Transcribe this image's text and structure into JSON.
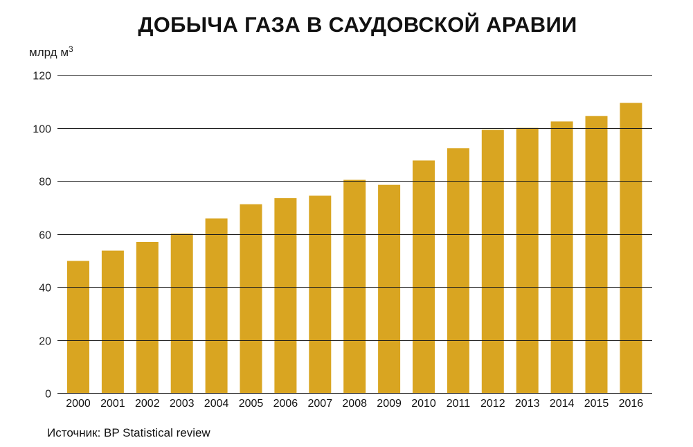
{
  "title": "ДОБЫЧА ГАЗА В САУДОВСКОЙ АРАВИИ",
  "unit": {
    "text": "млрд м",
    "superscript": "3"
  },
  "source": "Источник: BP Statistical review",
  "colors": {
    "bar": "#d9a521",
    "grid": "#1a1a1a",
    "baseline_marker": "#7a1f0c"
  },
  "chart_data": {
    "type": "bar",
    "title": "ДОБЫЧА ГАЗА В САУДОВСКОЙ АРАВИИ",
    "xlabel": "",
    "ylabel": "млрд м³",
    "ylim": [
      0,
      120
    ],
    "yticks": [
      0,
      20,
      40,
      60,
      80,
      100,
      120
    ],
    "grid": true,
    "categories": [
      "2000",
      "2001",
      "2002",
      "2003",
      "2004",
      "2005",
      "2006",
      "2007",
      "2008",
      "2009",
      "2010",
      "2011",
      "2012",
      "2013",
      "2014",
      "2015",
      "2016"
    ],
    "values": [
      49.8,
      53.7,
      57.0,
      60.1,
      65.8,
      71.2,
      73.5,
      74.4,
      80.4,
      78.5,
      87.7,
      92.3,
      99.3,
      100.0,
      102.4,
      104.5,
      109.4
    ]
  }
}
